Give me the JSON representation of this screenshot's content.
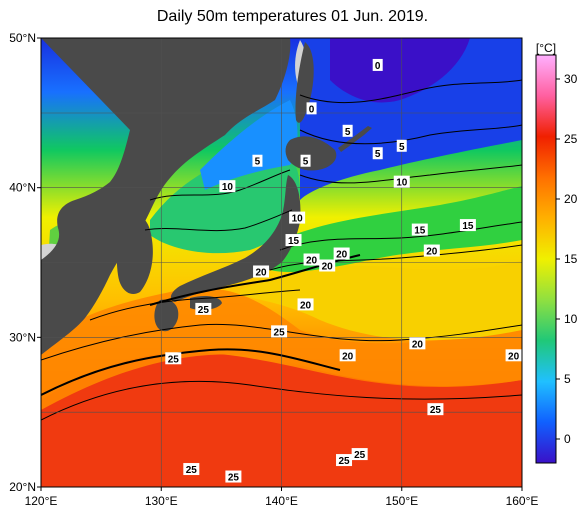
{
  "title": "Daily 50m temperatures 01 Jun. 2019.",
  "map": {
    "lon_range": [
      120,
      160
    ],
    "lat_range": [
      20,
      50
    ],
    "lon_ticks": [
      "120°E",
      "130°E",
      "140°E",
      "150°E",
      "160°E"
    ],
    "lat_ticks": [
      "20°N",
      "30°N",
      "40°N",
      "50°N"
    ],
    "grid": true,
    "land_color": "#4a4a4a",
    "shallow_color": "#d3d3d3"
  },
  "colorbar": {
    "unit": "[°C]",
    "ticks": [
      "0",
      "5",
      "10",
      "15",
      "20",
      "25",
      "30"
    ],
    "tick_values": [
      0,
      5,
      10,
      15,
      20,
      25,
      30
    ],
    "range": [
      -2,
      32
    ],
    "stops": [
      "#3a10c8",
      "#1060ff",
      "#20c0ff",
      "#20c878",
      "#90e040",
      "#f0f000",
      "#ffb000",
      "#ff7000",
      "#f02000",
      "#ff60a0",
      "#ffb0ff"
    ]
  },
  "contour_labels": [
    {
      "text": "0",
      "lon": 148.0,
      "lat": 48.2
    },
    {
      "text": "0",
      "lon": 142.5,
      "lat": 45.3
    },
    {
      "text": "5",
      "lon": 145.5,
      "lat": 43.8
    },
    {
      "text": "5",
      "lon": 148.0,
      "lat": 42.3
    },
    {
      "text": "5",
      "lon": 150.0,
      "lat": 42.8
    },
    {
      "text": "5",
      "lon": 138.0,
      "lat": 41.8
    },
    {
      "text": "5",
      "lon": 142.0,
      "lat": 41.8
    },
    {
      "text": "10",
      "lon": 135.5,
      "lat": 40.1
    },
    {
      "text": "10",
      "lon": 150.0,
      "lat": 40.4
    },
    {
      "text": "10",
      "lon": 141.3,
      "lat": 38.0
    },
    {
      "text": "15",
      "lon": 141.0,
      "lat": 36.5
    },
    {
      "text": "15",
      "lon": 151.5,
      "lat": 37.2
    },
    {
      "text": "15",
      "lon": 155.5,
      "lat": 37.5
    },
    {
      "text": "20",
      "lon": 142.5,
      "lat": 35.2
    },
    {
      "text": "20",
      "lon": 145.0,
      "lat": 35.6
    },
    {
      "text": "20",
      "lon": 143.8,
      "lat": 34.8
    },
    {
      "text": "20",
      "lon": 138.3,
      "lat": 34.4
    },
    {
      "text": "20",
      "lon": 152.5,
      "lat": 35.8
    },
    {
      "text": "20",
      "lon": 142.0,
      "lat": 32.2
    },
    {
      "text": "20",
      "lon": 151.3,
      "lat": 29.6
    },
    {
      "text": "20",
      "lon": 145.5,
      "lat": 28.8
    },
    {
      "text": "20",
      "lon": 159.3,
      "lat": 28.8
    },
    {
      "text": "25",
      "lon": 133.5,
      "lat": 31.9
    },
    {
      "text": "25",
      "lon": 139.8,
      "lat": 30.4
    },
    {
      "text": "25",
      "lon": 131.0,
      "lat": 28.6
    },
    {
      "text": "25",
      "lon": 152.8,
      "lat": 25.2
    },
    {
      "text": "25",
      "lon": 146.5,
      "lat": 22.2
    },
    {
      "text": "25",
      "lon": 145.2,
      "lat": 21.8
    },
    {
      "text": "25",
      "lon": 132.5,
      "lat": 21.2
    },
    {
      "text": "25",
      "lon": 136.0,
      "lat": 20.7
    }
  ]
}
